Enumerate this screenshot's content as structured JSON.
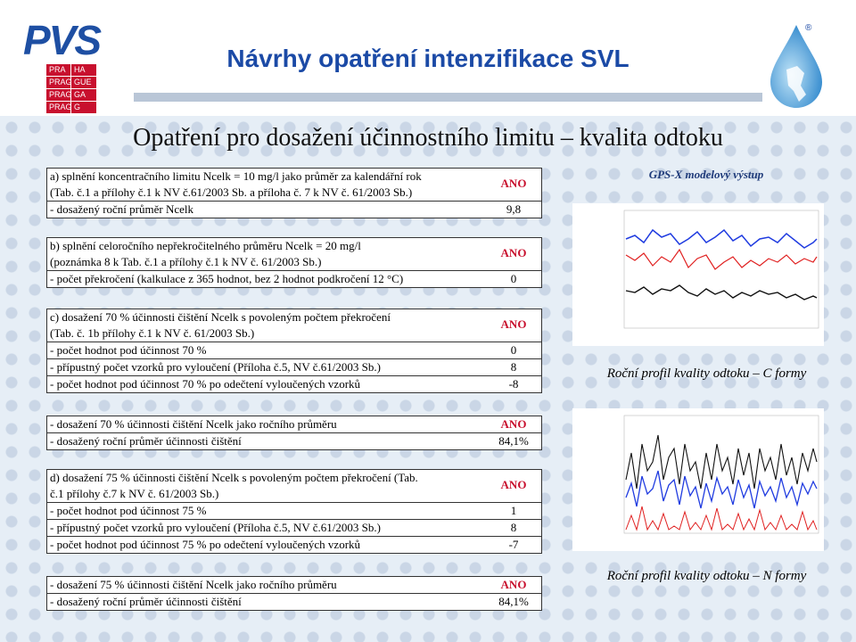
{
  "header": {
    "logo_text": "PVS",
    "prague_cells": [
      "PRA",
      "HA",
      "PRAGUE",
      "GUE",
      "PRAGA",
      "GA",
      "PRAG",
      "G"
    ],
    "title": "Návrhy opatření intenzifikace SVL",
    "registered_mark": "®",
    "subtitle": "Opatření pro dosažení účinnostního limitu – kvalita odtoku"
  },
  "sections": {
    "a": {
      "line1": "a) splnění koncentračního limitu Ncelk = 10 mg/l jako průměr za kalendářní rok",
      "line2": "(Tab. č.1 a přílohy č.1 k NV č.61/2003 Sb. a příloha č. 7 k NV č. 61/2003 Sb.)",
      "result": "ANO",
      "sub_label": "- dosažený roční průměr Ncelk",
      "sub_value": "9,8"
    },
    "b": {
      "line1": "b) splnění celoročního nepřekročitelného průměru Ncelk = 20 mg/l",
      "line2": "(poznámka 8 k Tab. č.1 a přílohy č.1 k NV č. 61/2003 Sb.)",
      "result": "ANO",
      "sub_label": "- počet překročení (kalkulace z 365 hodnot, bez 2 hodnot podkročení 12 °C)",
      "sub_value": "0"
    },
    "c": {
      "line1": "c) dosažení 70 % účinnosti čištění Ncelk s povoleným počtem překročení",
      "line2": "(Tab. č. 1b přílohy č.1 k NV č. 61/2003 Sb.)",
      "result": "ANO",
      "items": [
        {
          "label": "- počet hodnot pod účinnost 70 %",
          "value": "0"
        },
        {
          "label": "- přípustný počet vzorků pro vyloučení (Příloha č.5, NV č.61/2003 Sb.)",
          "value": "8"
        },
        {
          "label": "- počet hodnot pod účinnost 70 % po odečtení vyloučených vzorků",
          "value": "-8"
        }
      ]
    },
    "c2": {
      "line1": "- dosažení 70 % účinnosti čištění Ncelk jako ročního průměru",
      "result": "ANO",
      "line2": "- dosažený roční průměr účinnosti čištění",
      "value": "84,1%"
    },
    "d": {
      "line1": "d) dosažení 75 % účinnosti čištění Ncelk s povoleným počtem překročení   (Tab.",
      "line2": "č.1 přílohy č.7 k NV č. 61/2003 Sb.)",
      "result": "ANO",
      "items": [
        {
          "label": "- počet hodnot pod účinnost 75 %",
          "value": "1"
        },
        {
          "label": "- přípustný počet vzorků pro vyloučení (Příloha č.5, NV č.61/2003 Sb.)",
          "value": "8"
        },
        {
          "label": "- počet hodnot pod účinnost 75 % po odečtení vyloučených vzorků",
          "value": "-7"
        }
      ]
    },
    "d2": {
      "line1": "- dosažení 75 % účinnosti čištění Ncelk jako ročního průměru",
      "result": "ANO",
      "line2": "- dosažený roční průměr účinnosti čištění",
      "value": "84,1%"
    }
  },
  "charts": {
    "heading": "GPS-X modelový výstup",
    "caption_c": "Roční profil kvality odtoku – C formy",
    "caption_n": "Roční profil kvality odtoku – N formy"
  }
}
